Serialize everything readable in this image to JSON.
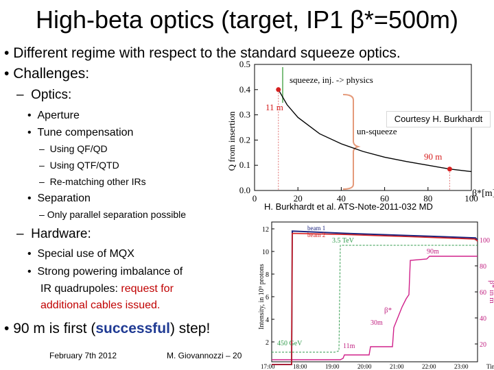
{
  "slide": {
    "title": "High-beta optics (target, IP1 β*=500m)",
    "bullets": {
      "b1": "Different regime with respect to the standard squeeze optics.",
      "b2": "Challenges:",
      "optics": "Optics:",
      "aperture": "Aperture",
      "tune": "Tune compensation",
      "qfqd": "Using QF/QD",
      "qtf": "Using QTF/QTD",
      "rematch": "Re-matching other IRs",
      "separation": "Separation",
      "parallel": "Only parallel separation possible",
      "hardware": "Hardware:",
      "mqx": "Special use of MQX",
      "imbalance1": "Strong powering imbalance of",
      "imbalance2": "IR quadrupoles:",
      "request1": "request for",
      "request2": "additional cables issued.",
      "last_pre": "90 m is first (",
      "last_bold": "successful",
      "last_post": ") step!"
    },
    "footer": {
      "date": "February 7th 2012",
      "author": "M. Giovannozzi – 20"
    }
  },
  "colors": {
    "red": "#c00000",
    "blue": "#1f3a93",
    "curve": "#000000",
    "marker": "#d62020"
  },
  "figures": {
    "optics_plot": {
      "ylabel": "Q from insertion",
      "yticks": [
        "0.5",
        "0.4",
        "0.3",
        "0.2",
        "0.1",
        "0.0"
      ],
      "xticks": [
        "0",
        "20",
        "40",
        "60",
        "80",
        "100"
      ],
      "xunit": "β*[m]",
      "squeeze_label": "squeeze, inj. -> physics",
      "unsqueeze_label": "un-squeeze",
      "point_11": "11 m",
      "point_90": "90 m",
      "courtesy": "Courtesy H. Burkhardt",
      "reference": "H. Burkhardt et al. ATS-Note-2011-032 MD"
    },
    "run_plot": {
      "ylabel": "Intensity, in 10⁹ protons",
      "ylabel_right": "β* in m",
      "yticks_left": [
        "12",
        "10",
        "8",
        "6",
        "4",
        "2"
      ],
      "yticks_right": [
        "100",
        "80",
        "60",
        "40",
        "20"
      ],
      "xticks": [
        "17:00",
        "18:00",
        "19:00",
        "20:00",
        "21:00",
        "22:00",
        "23:00",
        "Time"
      ],
      "beam1": "beam 1",
      "beam2": "beam 2",
      "energy_top": "3.5 TeV",
      "energy_bottom": "450 GeV",
      "beta_label": "β*",
      "beta_90": "90m",
      "beta_30": "30m",
      "beta_11": "11m"
    }
  },
  "chart_data": [
    {
      "type": "line",
      "title": "",
      "xlabel": "β*[m]",
      "ylabel": "Q from insertion",
      "xlim": [
        0,
        100
      ],
      "ylim": [
        0,
        0.5
      ],
      "series": [
        {
          "x": [
            11,
            15,
            20,
            30,
            40,
            50,
            60,
            70,
            80,
            90,
            100
          ],
          "values": [
            0.4,
            0.34,
            0.29,
            0.225,
            0.185,
            0.155,
            0.132,
            0.115,
            0.1,
            0.085,
            0.075
          ]
        }
      ]
    },
    {
      "type": "line",
      "title": "",
      "xlabel": "Time",
      "ylabel": "Intensity, in 10⁹ protons",
      "x": [
        "17:00",
        "18:00",
        "19:00",
        "20:00",
        "21:00",
        "22:00",
        "23:00"
      ],
      "series": [
        {
          "name": "beam 1",
          "values": [
            0,
            11.8,
            11.6,
            11.5,
            11.4,
            11.3,
            11.2
          ]
        },
        {
          "name": "beam 2",
          "values": [
            0,
            11.6,
            11.5,
            11.4,
            11.3,
            11.2,
            11.1
          ]
        }
      ]
    }
  ]
}
